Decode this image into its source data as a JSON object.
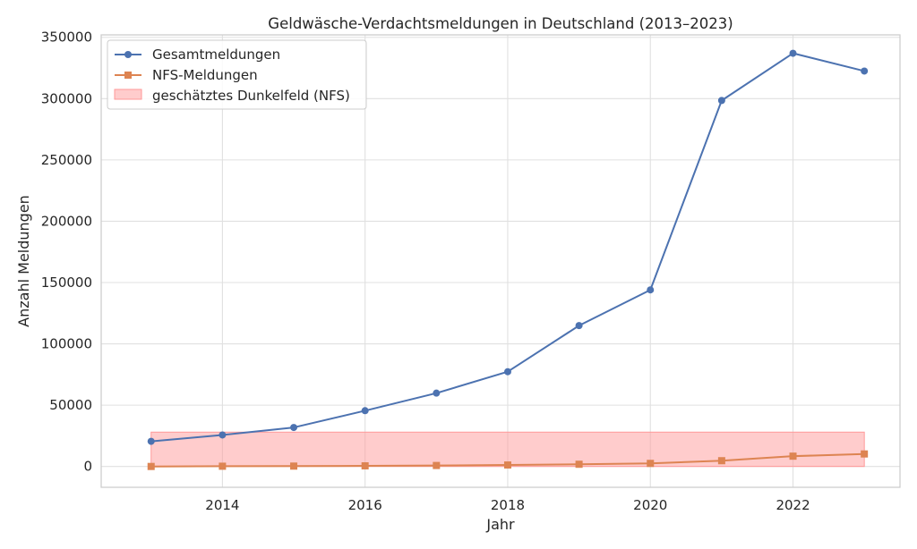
{
  "chart_data": {
    "type": "line",
    "title": "Geldwäsche-Verdachtsmeldungen in Deutschland (2013–2023)",
    "xlabel": "Jahr",
    "ylabel": "Anzahl Meldungen",
    "xlim": [
      2012.3,
      2023.5
    ],
    "ylim": [
      -17000,
      352000
    ],
    "x_ticks": [
      2014,
      2016,
      2018,
      2020,
      2022
    ],
    "x_tick_labels": [
      "2014",
      "2016",
      "2018",
      "2020",
      "2022"
    ],
    "y_ticks": [
      0,
      50000,
      100000,
      150000,
      200000,
      250000,
      300000,
      350000
    ],
    "y_tick_labels": [
      "0",
      "50000",
      "100000",
      "150000",
      "200000",
      "250000",
      "300000",
      "350000"
    ],
    "grid": true,
    "legend_position": "top-left",
    "x": [
      2013,
      2014,
      2015,
      2016,
      2017,
      2018,
      2019,
      2020,
      2021,
      2022,
      2023
    ],
    "series": [
      {
        "name": "Gesamtmeldungen",
        "marker": "circle",
        "color": "#4c72b0",
        "values": [
          20500,
          25700,
          31800,
          45500,
          59800,
          77300,
          114900,
          144000,
          298500,
          337000,
          322500
        ]
      },
      {
        "name": "NFS-Meldungen",
        "marker": "square",
        "color": "#dd8452",
        "values": [
          0,
          200,
          300,
          500,
          800,
          1200,
          1800,
          2500,
          4700,
          8400,
          10200
        ]
      }
    ],
    "band": {
      "name": "geschätztes Dunkelfeld (NFS)",
      "color": "#ff9999",
      "x_range": [
        2013,
        2023
      ],
      "y_range": [
        0,
        28000
      ]
    }
  }
}
